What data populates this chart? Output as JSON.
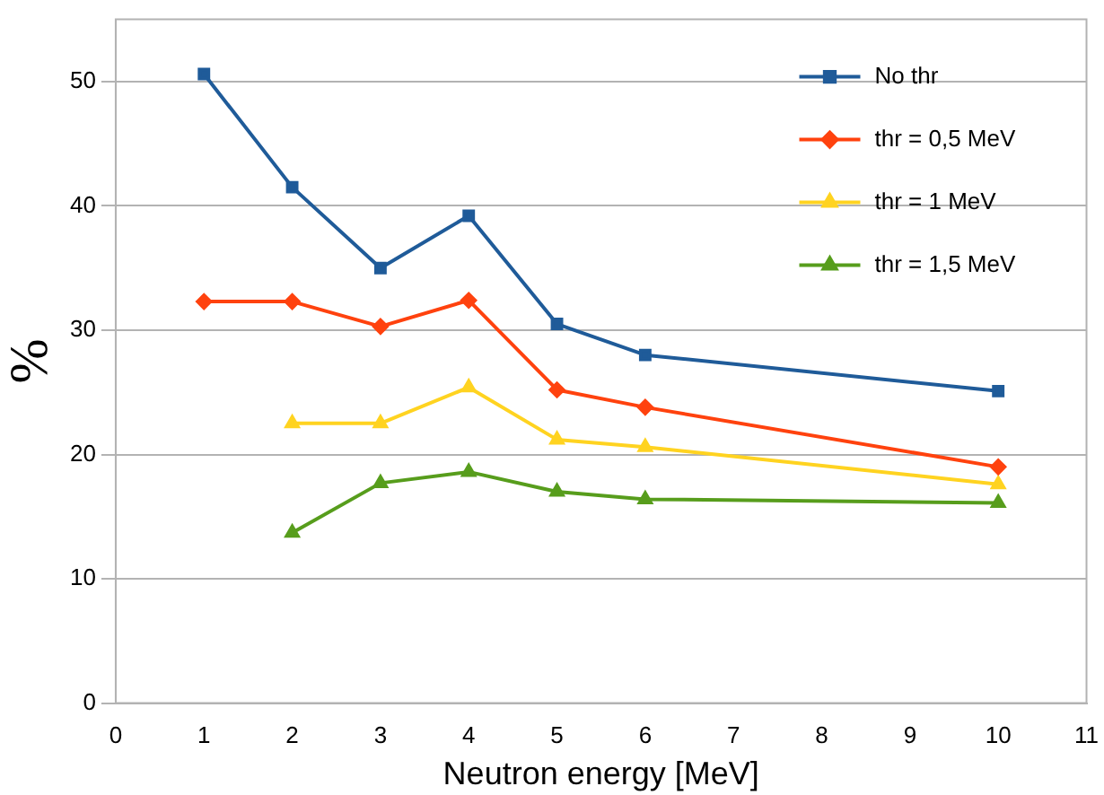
{
  "chart_data": {
    "type": "line",
    "xlabel": "Neutron energy [MeV]",
    "ylabel": "%",
    "xlim": [
      0,
      11
    ],
    "xticks": [
      0,
      1,
      2,
      3,
      4,
      5,
      6,
      7,
      8,
      9,
      10,
      11
    ],
    "ylim": [
      0,
      55
    ],
    "yticks": [
      0,
      10,
      20,
      30,
      40,
      50
    ],
    "grid": "y",
    "legend": "top right",
    "line_style": "solid",
    "series": [
      {
        "name": "No thr",
        "color": "#1f5b99",
        "marker": "square",
        "x": [
          1,
          2,
          3,
          4,
          5,
          6,
          10
        ],
        "values": [
          50.6,
          41.5,
          35.0,
          39.2,
          30.5,
          28.0,
          25.1
        ]
      },
      {
        "name": "thr = 0,5 MeV",
        "color": "#ff420e",
        "marker": "diamond",
        "x": [
          1,
          2,
          3,
          4,
          5,
          6,
          10
        ],
        "values": [
          32.3,
          32.3,
          30.3,
          32.4,
          25.2,
          23.8,
          19.0
        ]
      },
      {
        "name": "thr = 1 MeV",
        "color": "#ffd320",
        "marker": "triangle",
        "x": [
          2,
          3,
          4,
          5,
          6,
          10
        ],
        "values": [
          22.5,
          22.5,
          25.4,
          21.2,
          20.6,
          17.6
        ]
      },
      {
        "name": "thr = 1,5 MeV",
        "color": "#579d1c",
        "marker": "triangle",
        "x": [
          2,
          3,
          4,
          5,
          6,
          10
        ],
        "values": [
          13.7,
          17.7,
          18.6,
          17.0,
          16.4,
          16.1
        ]
      }
    ]
  }
}
